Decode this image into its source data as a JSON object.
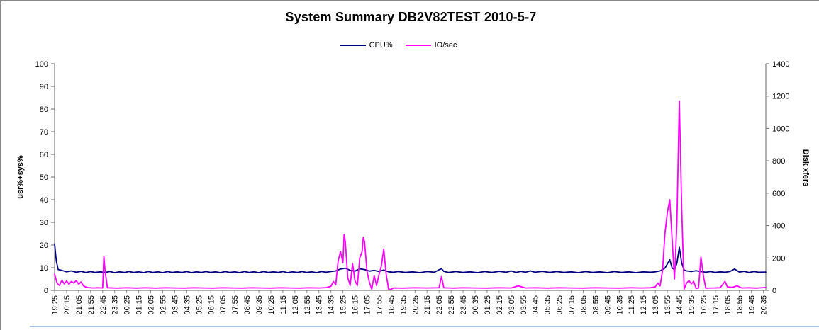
{
  "chart_data": {
    "type": "line",
    "title": "System Summary DB2V82TEST  2010-5-7",
    "legend_position": "top-center",
    "grid": "off",
    "x_axis": {
      "points_per_label": 5,
      "x_max": 296,
      "tick_interval_minutes": 50,
      "tick_labels": [
        "19:25",
        "20:15",
        "21:05",
        "21:55",
        "22:45",
        "23:35",
        "00:25",
        "01:15",
        "02:05",
        "02:55",
        "03:45",
        "04:35",
        "05:25",
        "06:15",
        "07:05",
        "07:55",
        "08:45",
        "09:35",
        "10:25",
        "11:15",
        "12:05",
        "12:55",
        "13:45",
        "14:35",
        "15:25",
        "16:15",
        "17:05",
        "17:55",
        "18:45",
        "19:35",
        "20:25",
        "21:15",
        "22:05",
        "22:55",
        "23:45",
        "00:35",
        "01:25",
        "02:15",
        "03:05",
        "03:55",
        "04:45",
        "05:35",
        "06:25",
        "07:15",
        "08:05",
        "08:55",
        "09:45",
        "10:35",
        "11:25",
        "12:15",
        "13:05",
        "13:55",
        "14:45",
        "15:35",
        "16:25",
        "17:15",
        "18:05",
        "18:55",
        "19:45",
        "20:35"
      ]
    },
    "y_left": {
      "label": "usr%+sys%",
      "min": 0,
      "max": 100,
      "step": 10
    },
    "y_right": {
      "label": "Disk xfers",
      "min": 0,
      "max": 1400,
      "step": 200
    },
    "colors": {
      "axis_line": "#808080",
      "tick_text": "#000000",
      "frame_border": "#888888",
      "sheet_line": "#aec6e8"
    },
    "series": [
      {
        "name": "CPU%",
        "axis": "left",
        "color": "#000080",
        "points": [
          [
            0,
            20.5
          ],
          [
            0.7,
            13
          ],
          [
            1.5,
            9.2
          ],
          [
            3,
            8.8
          ],
          [
            5,
            8.2
          ],
          [
            7,
            8.6
          ],
          [
            9,
            8.0
          ],
          [
            11,
            8.4
          ],
          [
            13,
            7.9
          ],
          [
            15,
            8.3
          ],
          [
            17,
            7.9
          ],
          [
            19,
            8.2
          ],
          [
            21,
            7.9
          ],
          [
            23,
            8.3
          ],
          [
            25,
            7.8
          ],
          [
            27,
            8.2
          ],
          [
            29,
            7.9
          ],
          [
            31,
            8.3
          ],
          [
            33,
            7.9
          ],
          [
            35,
            8.2
          ],
          [
            37,
            7.8
          ],
          [
            39,
            8.3
          ],
          [
            41,
            7.9
          ],
          [
            43,
            8.2
          ],
          [
            45,
            7.8
          ],
          [
            47,
            8.3
          ],
          [
            49,
            7.9
          ],
          [
            51,
            8.2
          ],
          [
            53,
            7.9
          ],
          [
            55,
            8.3
          ],
          [
            57,
            7.8
          ],
          [
            59,
            8.2
          ],
          [
            61,
            7.9
          ],
          [
            63,
            8.3
          ],
          [
            65,
            7.9
          ],
          [
            67,
            8.2
          ],
          [
            69,
            7.8
          ],
          [
            71,
            8.3
          ],
          [
            73,
            7.9
          ],
          [
            75,
            8.2
          ],
          [
            77,
            7.8
          ],
          [
            79,
            8.3
          ],
          [
            81,
            7.9
          ],
          [
            83,
            8.2
          ],
          [
            85,
            7.8
          ],
          [
            87,
            8.3
          ],
          [
            89,
            7.9
          ],
          [
            91,
            8.2
          ],
          [
            93,
            7.9
          ],
          [
            95,
            8.3
          ],
          [
            97,
            7.8
          ],
          [
            99,
            8.2
          ],
          [
            101,
            7.9
          ],
          [
            103,
            8.3
          ],
          [
            105,
            7.9
          ],
          [
            107,
            8.2
          ],
          [
            109,
            7.8
          ],
          [
            111,
            8.3
          ],
          [
            113,
            8.0
          ],
          [
            115,
            8.3
          ],
          [
            117,
            8.6
          ],
          [
            119,
            9.4
          ],
          [
            121,
            9.8
          ],
          [
            123,
            8.8
          ],
          [
            125,
            8.5
          ],
          [
            127,
            9.5
          ],
          [
            129,
            9.2
          ],
          [
            131,
            8.5
          ],
          [
            133,
            8.8
          ],
          [
            135,
            8.3
          ],
          [
            137,
            9.0
          ],
          [
            139,
            8.2
          ],
          [
            141,
            8.0
          ],
          [
            143,
            8.3
          ],
          [
            146,
            7.9
          ],
          [
            149,
            8.2
          ],
          [
            152,
            7.8
          ],
          [
            155,
            8.3
          ],
          [
            158,
            8.0
          ],
          [
            160,
            9.1
          ],
          [
            161,
            9.6
          ],
          [
            162,
            8.4
          ],
          [
            164,
            7.9
          ],
          [
            167,
            8.3
          ],
          [
            170,
            7.9
          ],
          [
            173,
            8.2
          ],
          [
            176,
            7.8
          ],
          [
            179,
            8.3
          ],
          [
            182,
            7.9
          ],
          [
            185,
            8.4
          ],
          [
            188,
            8.0
          ],
          [
            190,
            8.6
          ],
          [
            192,
            7.9
          ],
          [
            194,
            8.4
          ],
          [
            196,
            8.0
          ],
          [
            198,
            8.6
          ],
          [
            200,
            8.0
          ],
          [
            203,
            8.4
          ],
          [
            206,
            7.9
          ],
          [
            209,
            8.3
          ],
          [
            212,
            7.9
          ],
          [
            215,
            8.2
          ],
          [
            218,
            7.8
          ],
          [
            221,
            8.3
          ],
          [
            224,
            7.9
          ],
          [
            227,
            8.2
          ],
          [
            230,
            7.8
          ],
          [
            233,
            8.3
          ],
          [
            236,
            7.9
          ],
          [
            239,
            8.2
          ],
          [
            242,
            7.8
          ],
          [
            245,
            8.2
          ],
          [
            248,
            8.0
          ],
          [
            250,
            8.2
          ],
          [
            252,
            8.6
          ],
          [
            254,
            9.8
          ],
          [
            256,
            13.5
          ],
          [
            257,
            10
          ],
          [
            258,
            9.0
          ],
          [
            259,
            12
          ],
          [
            260,
            19
          ],
          [
            261,
            12
          ],
          [
            262,
            9
          ],
          [
            263,
            8.6
          ],
          [
            265,
            8.3
          ],
          [
            267,
            8.7
          ],
          [
            269,
            8.3
          ],
          [
            271,
            8.0
          ],
          [
            273,
            8.3
          ],
          [
            275,
            7.9
          ],
          [
            277,
            8.2
          ],
          [
            279,
            8.0
          ],
          [
            281,
            8.3
          ],
          [
            283,
            9.4
          ],
          [
            285,
            8.1
          ],
          [
            287,
            8.4
          ],
          [
            289,
            7.9
          ],
          [
            291,
            8.3
          ],
          [
            293,
            8.0
          ],
          [
            296,
            8.1
          ]
        ]
      },
      {
        "name": "IO/sec",
        "axis": "right",
        "color": "#ff00ff",
        "points": [
          [
            0,
            100
          ],
          [
            1,
            45
          ],
          [
            2,
            30
          ],
          [
            3,
            62
          ],
          [
            4,
            40
          ],
          [
            5,
            58
          ],
          [
            6,
            38
          ],
          [
            7,
            55
          ],
          [
            8,
            45
          ],
          [
            9,
            60
          ],
          [
            10,
            38
          ],
          [
            11,
            52
          ],
          [
            12,
            28
          ],
          [
            13,
            20
          ],
          [
            14,
            17
          ],
          [
            16,
            15
          ],
          [
            18,
            16
          ],
          [
            20,
            15
          ],
          [
            20.5,
            210
          ],
          [
            21,
            120
          ],
          [
            22,
            16
          ],
          [
            26,
            14
          ],
          [
            30,
            16
          ],
          [
            34,
            14
          ],
          [
            38,
            16
          ],
          [
            42,
            14
          ],
          [
            46,
            16
          ],
          [
            50,
            15
          ],
          [
            54,
            14
          ],
          [
            58,
            16
          ],
          [
            62,
            15
          ],
          [
            66,
            14
          ],
          [
            70,
            16
          ],
          [
            74,
            15
          ],
          [
            78,
            14
          ],
          [
            82,
            16
          ],
          [
            86,
            15
          ],
          [
            90,
            14
          ],
          [
            94,
            16
          ],
          [
            98,
            15
          ],
          [
            102,
            14
          ],
          [
            106,
            16
          ],
          [
            110,
            15
          ],
          [
            113,
            17
          ],
          [
            115,
            25
          ],
          [
            116,
            55
          ],
          [
            117,
            35
          ],
          [
            118,
            180
          ],
          [
            119,
            240
          ],
          [
            120,
            170
          ],
          [
            120.5,
            345
          ],
          [
            121,
            300
          ],
          [
            122,
            80
          ],
          [
            123,
            30
          ],
          [
            124,
            165
          ],
          [
            125,
            60
          ],
          [
            126,
            30
          ],
          [
            127,
            200
          ],
          [
            128,
            240
          ],
          [
            128.5,
            328
          ],
          [
            129,
            300
          ],
          [
            130,
            120
          ],
          [
            131,
            50
          ],
          [
            132,
            8
          ],
          [
            133,
            90
          ],
          [
            134,
            30
          ],
          [
            135,
            95
          ],
          [
            136,
            150
          ],
          [
            137,
            255
          ],
          [
            138,
            100
          ],
          [
            139,
            8
          ],
          [
            140,
            6
          ],
          [
            141,
            15
          ],
          [
            145,
            14
          ],
          [
            150,
            16
          ],
          [
            155,
            15
          ],
          [
            160,
            16
          ],
          [
            161,
            85
          ],
          [
            162,
            16
          ],
          [
            166,
            14
          ],
          [
            170,
            16
          ],
          [
            175,
            15
          ],
          [
            180,
            14
          ],
          [
            185,
            16
          ],
          [
            190,
            15
          ],
          [
            193,
            28
          ],
          [
            196,
            15
          ],
          [
            200,
            16
          ],
          [
            205,
            14
          ],
          [
            210,
            16
          ],
          [
            215,
            15
          ],
          [
            220,
            14
          ],
          [
            225,
            16
          ],
          [
            230,
            15
          ],
          [
            235,
            14
          ],
          [
            240,
            16
          ],
          [
            244,
            15
          ],
          [
            248,
            16
          ],
          [
            250,
            22
          ],
          [
            251,
            45
          ],
          [
            252,
            28
          ],
          [
            253,
            120
          ],
          [
            254,
            350
          ],
          [
            255,
            480
          ],
          [
            256,
            560
          ],
          [
            257,
            320
          ],
          [
            258,
            70
          ],
          [
            259,
            420
          ],
          [
            260,
            1170
          ],
          [
            261,
            500
          ],
          [
            262,
            8
          ],
          [
            263,
            45
          ],
          [
            264,
            60
          ],
          [
            265,
            40
          ],
          [
            266,
            55
          ],
          [
            267,
            12
          ],
          [
            268,
            15
          ],
          [
            269,
            205
          ],
          [
            270,
            90
          ],
          [
            271,
            14
          ],
          [
            274,
            15
          ],
          [
            277,
            16
          ],
          [
            279,
            55
          ],
          [
            280,
            22
          ],
          [
            282,
            18
          ],
          [
            284,
            28
          ],
          [
            286,
            15
          ],
          [
            289,
            16
          ],
          [
            292,
            14
          ],
          [
            296,
            18
          ]
        ]
      }
    ]
  }
}
